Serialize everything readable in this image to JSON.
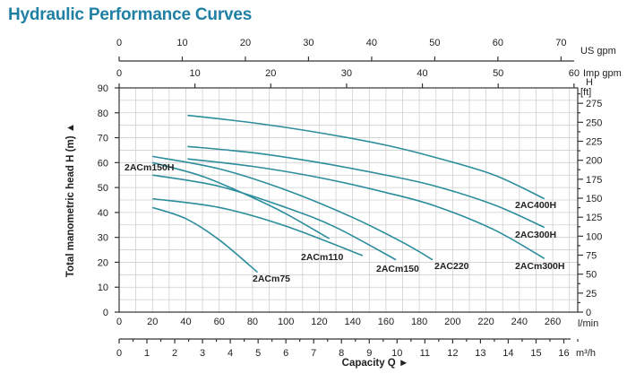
{
  "title": "Hydraulic Performance Curves",
  "colors": {
    "title": "#1f80a3",
    "curve": "#2b8d9c",
    "grid": "#cfcfcf"
  },
  "chart_data": {
    "type": "line",
    "title": "Hydraulic Performance Curves",
    "xlabel": "Capacity Q",
    "ylabel": "Total manometric head H (m)",
    "xlim": [
      0,
      275
    ],
    "ylim": [
      0,
      90
    ],
    "grid": true,
    "x_unit": "l/min",
    "x_ticks": [
      0,
      20,
      40,
      60,
      80,
      100,
      120,
      140,
      160,
      180,
      200,
      220,
      240,
      260
    ],
    "y_ticks": [
      0,
      10,
      20,
      30,
      40,
      50,
      60,
      70,
      80,
      90
    ],
    "secondary_axes": {
      "m3h": {
        "unit": "m³/h",
        "ticks": [
          0,
          1,
          2,
          3,
          4,
          5,
          6,
          7,
          8,
          9,
          10,
          11,
          12,
          13,
          14,
          15,
          16
        ],
        "per_lmin": 0.06
      },
      "us_gpm": {
        "unit": "US gpm",
        "ticks": [
          0,
          10,
          20,
          30,
          40,
          50,
          60,
          70
        ],
        "per_lmin": 0.26417
      },
      "imp_gpm": {
        "unit": "Imp gpm",
        "ticks": [
          0,
          10,
          20,
          30,
          40,
          50,
          60
        ],
        "per_lmin": 0.21997
      },
      "ft": {
        "unit": "[ft]",
        "label": "H",
        "ticks": [
          0,
          25,
          50,
          75,
          100,
          125,
          150,
          175,
          200,
          225,
          250,
          275
        ],
        "per_m": 3.2808
      }
    },
    "series": [
      {
        "name": "2AC400H",
        "points": [
          [
            41,
            79
          ],
          [
            80,
            76
          ],
          [
            120,
            72
          ],
          [
            160,
            67
          ],
          [
            190,
            62
          ],
          [
            225,
            55
          ],
          [
            255,
            45.5
          ]
        ]
      },
      {
        "name": "2AC300H",
        "points": [
          [
            41,
            66.5
          ],
          [
            80,
            64
          ],
          [
            120,
            60
          ],
          [
            160,
            55
          ],
          [
            190,
            50.5
          ],
          [
            225,
            43
          ],
          [
            255,
            34
          ]
        ]
      },
      {
        "name": "2ACm300H",
        "points": [
          [
            41,
            61.5
          ],
          [
            80,
            58.5
          ],
          [
            120,
            54
          ],
          [
            160,
            48
          ],
          [
            190,
            42.5
          ],
          [
            225,
            33
          ],
          [
            255,
            21.5
          ]
        ]
      },
      {
        "name": "2AC220",
        "points": [
          [
            20,
            62.5
          ],
          [
            60,
            57.5
          ],
          [
            100,
            49
          ],
          [
            140,
            38
          ],
          [
            170,
            28
          ],
          [
            188,
            21
          ]
        ]
      },
      {
        "name": "2ACm150",
        "points": [
          [
            20,
            55
          ],
          [
            60,
            50.5
          ],
          [
            100,
            42
          ],
          [
            130,
            34
          ],
          [
            166,
            21
          ]
        ]
      },
      {
        "name": "2ACm150H",
        "points": [
          [
            20,
            60
          ],
          [
            50,
            54.5
          ],
          [
            80,
            46
          ],
          [
            100,
            39.5
          ],
          [
            126,
            29.5
          ]
        ]
      },
      {
        "name": "2ACm110",
        "points": [
          [
            20,
            45.5
          ],
          [
            60,
            42
          ],
          [
            100,
            34.5
          ],
          [
            146,
            22.7
          ]
        ]
      },
      {
        "name": "2ACm75",
        "points": [
          [
            20,
            42
          ],
          [
            40,
            37.5
          ],
          [
            60,
            29
          ],
          [
            83,
            16
          ]
        ]
      }
    ]
  }
}
